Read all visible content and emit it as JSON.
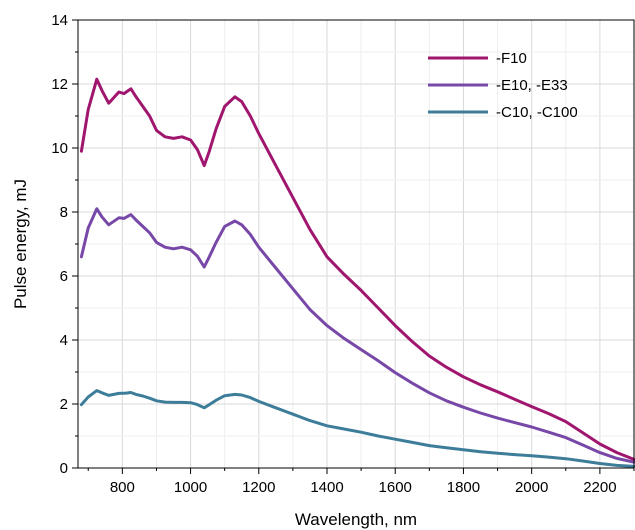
{
  "chart_data": {
    "type": "line",
    "title": "",
    "xlabel": "Wavelength, nm",
    "ylabel": "Pulse energy, mJ",
    "xlim": [
      670,
      2300
    ],
    "ylim": [
      0,
      14
    ],
    "x_ticks": [
      800,
      1000,
      1200,
      1400,
      1600,
      1800,
      2000,
      2200
    ],
    "y_ticks": [
      0,
      2,
      4,
      6,
      8,
      10,
      12,
      14
    ],
    "grid": true,
    "legend_position": "top-right",
    "series": [
      {
        "name": "-F10",
        "color": "#a0166e",
        "points": [
          [
            680,
            9.9
          ],
          [
            700,
            11.2
          ],
          [
            725,
            12.15
          ],
          [
            740,
            11.8
          ],
          [
            760,
            11.4
          ],
          [
            790,
            11.75
          ],
          [
            805,
            11.7
          ],
          [
            825,
            11.85
          ],
          [
            840,
            11.6
          ],
          [
            860,
            11.3
          ],
          [
            880,
            11.0
          ],
          [
            900,
            10.55
          ],
          [
            925,
            10.35
          ],
          [
            950,
            10.3
          ],
          [
            975,
            10.35
          ],
          [
            1000,
            10.25
          ],
          [
            1020,
            9.95
          ],
          [
            1040,
            9.45
          ],
          [
            1055,
            9.9
          ],
          [
            1075,
            10.6
          ],
          [
            1100,
            11.3
          ],
          [
            1130,
            11.6
          ],
          [
            1150,
            11.45
          ],
          [
            1175,
            11.0
          ],
          [
            1200,
            10.45
          ],
          [
            1250,
            9.45
          ],
          [
            1300,
            8.45
          ],
          [
            1350,
            7.45
          ],
          [
            1400,
            6.6
          ],
          [
            1450,
            6.05
          ],
          [
            1500,
            5.55
          ],
          [
            1550,
            5.0
          ],
          [
            1600,
            4.45
          ],
          [
            1650,
            3.95
          ],
          [
            1700,
            3.5
          ],
          [
            1750,
            3.15
          ],
          [
            1800,
            2.85
          ],
          [
            1850,
            2.6
          ],
          [
            1900,
            2.38
          ],
          [
            1950,
            2.15
          ],
          [
            2000,
            1.92
          ],
          [
            2050,
            1.7
          ],
          [
            2100,
            1.45
          ],
          [
            2150,
            1.1
          ],
          [
            2200,
            0.75
          ],
          [
            2250,
            0.48
          ],
          [
            2300,
            0.27
          ]
        ]
      },
      {
        "name": "-E10, -E33",
        "color": "#7848a8",
        "points": [
          [
            680,
            6.6
          ],
          [
            700,
            7.5
          ],
          [
            725,
            8.1
          ],
          [
            740,
            7.85
          ],
          [
            760,
            7.6
          ],
          [
            790,
            7.82
          ],
          [
            805,
            7.8
          ],
          [
            825,
            7.92
          ],
          [
            840,
            7.75
          ],
          [
            860,
            7.55
          ],
          [
            880,
            7.35
          ],
          [
            900,
            7.05
          ],
          [
            925,
            6.9
          ],
          [
            950,
            6.85
          ],
          [
            975,
            6.9
          ],
          [
            1000,
            6.82
          ],
          [
            1020,
            6.62
          ],
          [
            1040,
            6.28
          ],
          [
            1055,
            6.6
          ],
          [
            1075,
            7.05
          ],
          [
            1100,
            7.55
          ],
          [
            1130,
            7.72
          ],
          [
            1150,
            7.6
          ],
          [
            1175,
            7.3
          ],
          [
            1200,
            6.9
          ],
          [
            1250,
            6.25
          ],
          [
            1300,
            5.6
          ],
          [
            1350,
            4.95
          ],
          [
            1400,
            4.45
          ],
          [
            1450,
            4.05
          ],
          [
            1500,
            3.7
          ],
          [
            1550,
            3.35
          ],
          [
            1600,
            2.98
          ],
          [
            1650,
            2.65
          ],
          [
            1700,
            2.35
          ],
          [
            1750,
            2.1
          ],
          [
            1800,
            1.9
          ],
          [
            1850,
            1.72
          ],
          [
            1900,
            1.56
          ],
          [
            1950,
            1.42
          ],
          [
            2000,
            1.28
          ],
          [
            2050,
            1.12
          ],
          [
            2100,
            0.95
          ],
          [
            2150,
            0.72
          ],
          [
            2200,
            0.48
          ],
          [
            2250,
            0.3
          ],
          [
            2300,
            0.18
          ]
        ]
      },
      {
        "name": "-C10, -C100",
        "color": "#3d7d99",
        "points": [
          [
            680,
            1.98
          ],
          [
            700,
            2.22
          ],
          [
            725,
            2.42
          ],
          [
            740,
            2.35
          ],
          [
            760,
            2.27
          ],
          [
            790,
            2.33
          ],
          [
            810,
            2.34
          ],
          [
            825,
            2.36
          ],
          [
            840,
            2.3
          ],
          [
            860,
            2.25
          ],
          [
            880,
            2.18
          ],
          [
            900,
            2.1
          ],
          [
            925,
            2.06
          ],
          [
            950,
            2.05
          ],
          [
            975,
            2.05
          ],
          [
            1000,
            2.04
          ],
          [
            1020,
            1.98
          ],
          [
            1040,
            1.88
          ],
          [
            1055,
            1.98
          ],
          [
            1075,
            2.12
          ],
          [
            1100,
            2.26
          ],
          [
            1130,
            2.3
          ],
          [
            1150,
            2.28
          ],
          [
            1175,
            2.2
          ],
          [
            1200,
            2.08
          ],
          [
            1250,
            1.88
          ],
          [
            1300,
            1.68
          ],
          [
            1350,
            1.48
          ],
          [
            1400,
            1.32
          ],
          [
            1450,
            1.22
          ],
          [
            1500,
            1.12
          ],
          [
            1550,
            1.0
          ],
          [
            1600,
            0.9
          ],
          [
            1650,
            0.8
          ],
          [
            1700,
            0.7
          ],
          [
            1750,
            0.63
          ],
          [
            1800,
            0.57
          ],
          [
            1850,
            0.51
          ],
          [
            1900,
            0.46
          ],
          [
            1950,
            0.42
          ],
          [
            2000,
            0.38
          ],
          [
            2050,
            0.34
          ],
          [
            2100,
            0.29
          ],
          [
            2150,
            0.22
          ],
          [
            2200,
            0.14
          ],
          [
            2250,
            0.08
          ],
          [
            2300,
            0.05
          ]
        ]
      }
    ]
  }
}
